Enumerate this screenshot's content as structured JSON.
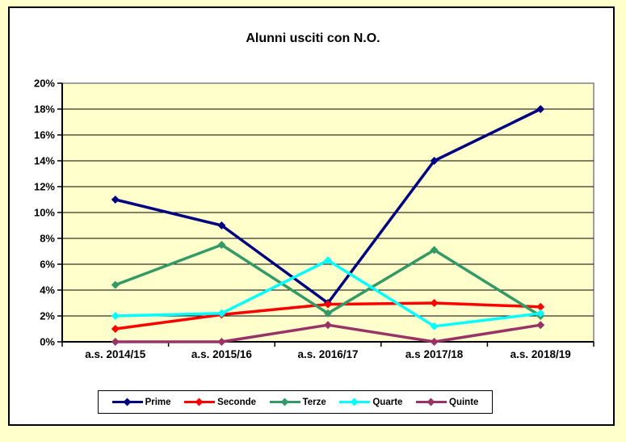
{
  "page": {
    "background": "#FFFFCC",
    "frame_background": "#FFFFFF",
    "frame_border_color": "#000000"
  },
  "chart_data": {
    "type": "line",
    "title": "Alunni usciti con N.O.",
    "categories": [
      "a.s. 2014/15",
      "a.s. 2015/16",
      "a.s. 2016/17",
      "a.s 2017/18",
      "a.s. 2018/19"
    ],
    "series": [
      {
        "name": "Prime",
        "color": "#000080",
        "values": [
          11,
          9,
          3,
          14,
          18
        ]
      },
      {
        "name": "Seconde",
        "color": "#FF0000",
        "values": [
          1,
          2.1,
          2.9,
          3,
          2.7
        ]
      },
      {
        "name": "Terze",
        "color": "#339966",
        "values": [
          4.4,
          7.5,
          2.2,
          7.1,
          2
        ]
      },
      {
        "name": "Quarte",
        "color": "#00FFFF",
        "values": [
          2,
          2.2,
          6.3,
          1.2,
          2.2
        ]
      },
      {
        "name": "Quinte",
        "color": "#993366",
        "values": [
          0,
          0,
          1.3,
          0,
          1.3
        ]
      }
    ],
    "xlabel": "",
    "ylabel": "",
    "ylim": [
      0,
      20
    ],
    "y_tick_step": 2,
    "y_tick_labels": [
      "0%",
      "2%",
      "4%",
      "6%",
      "8%",
      "10%",
      "12%",
      "14%",
      "16%",
      "18%",
      "20%"
    ],
    "grid": true,
    "gridline_color": "#000000",
    "plot_background": "#FFFFCC",
    "plot_border_color": "#808080",
    "axis_color": "#000000",
    "marker": "diamond",
    "legend_position": "bottom"
  }
}
